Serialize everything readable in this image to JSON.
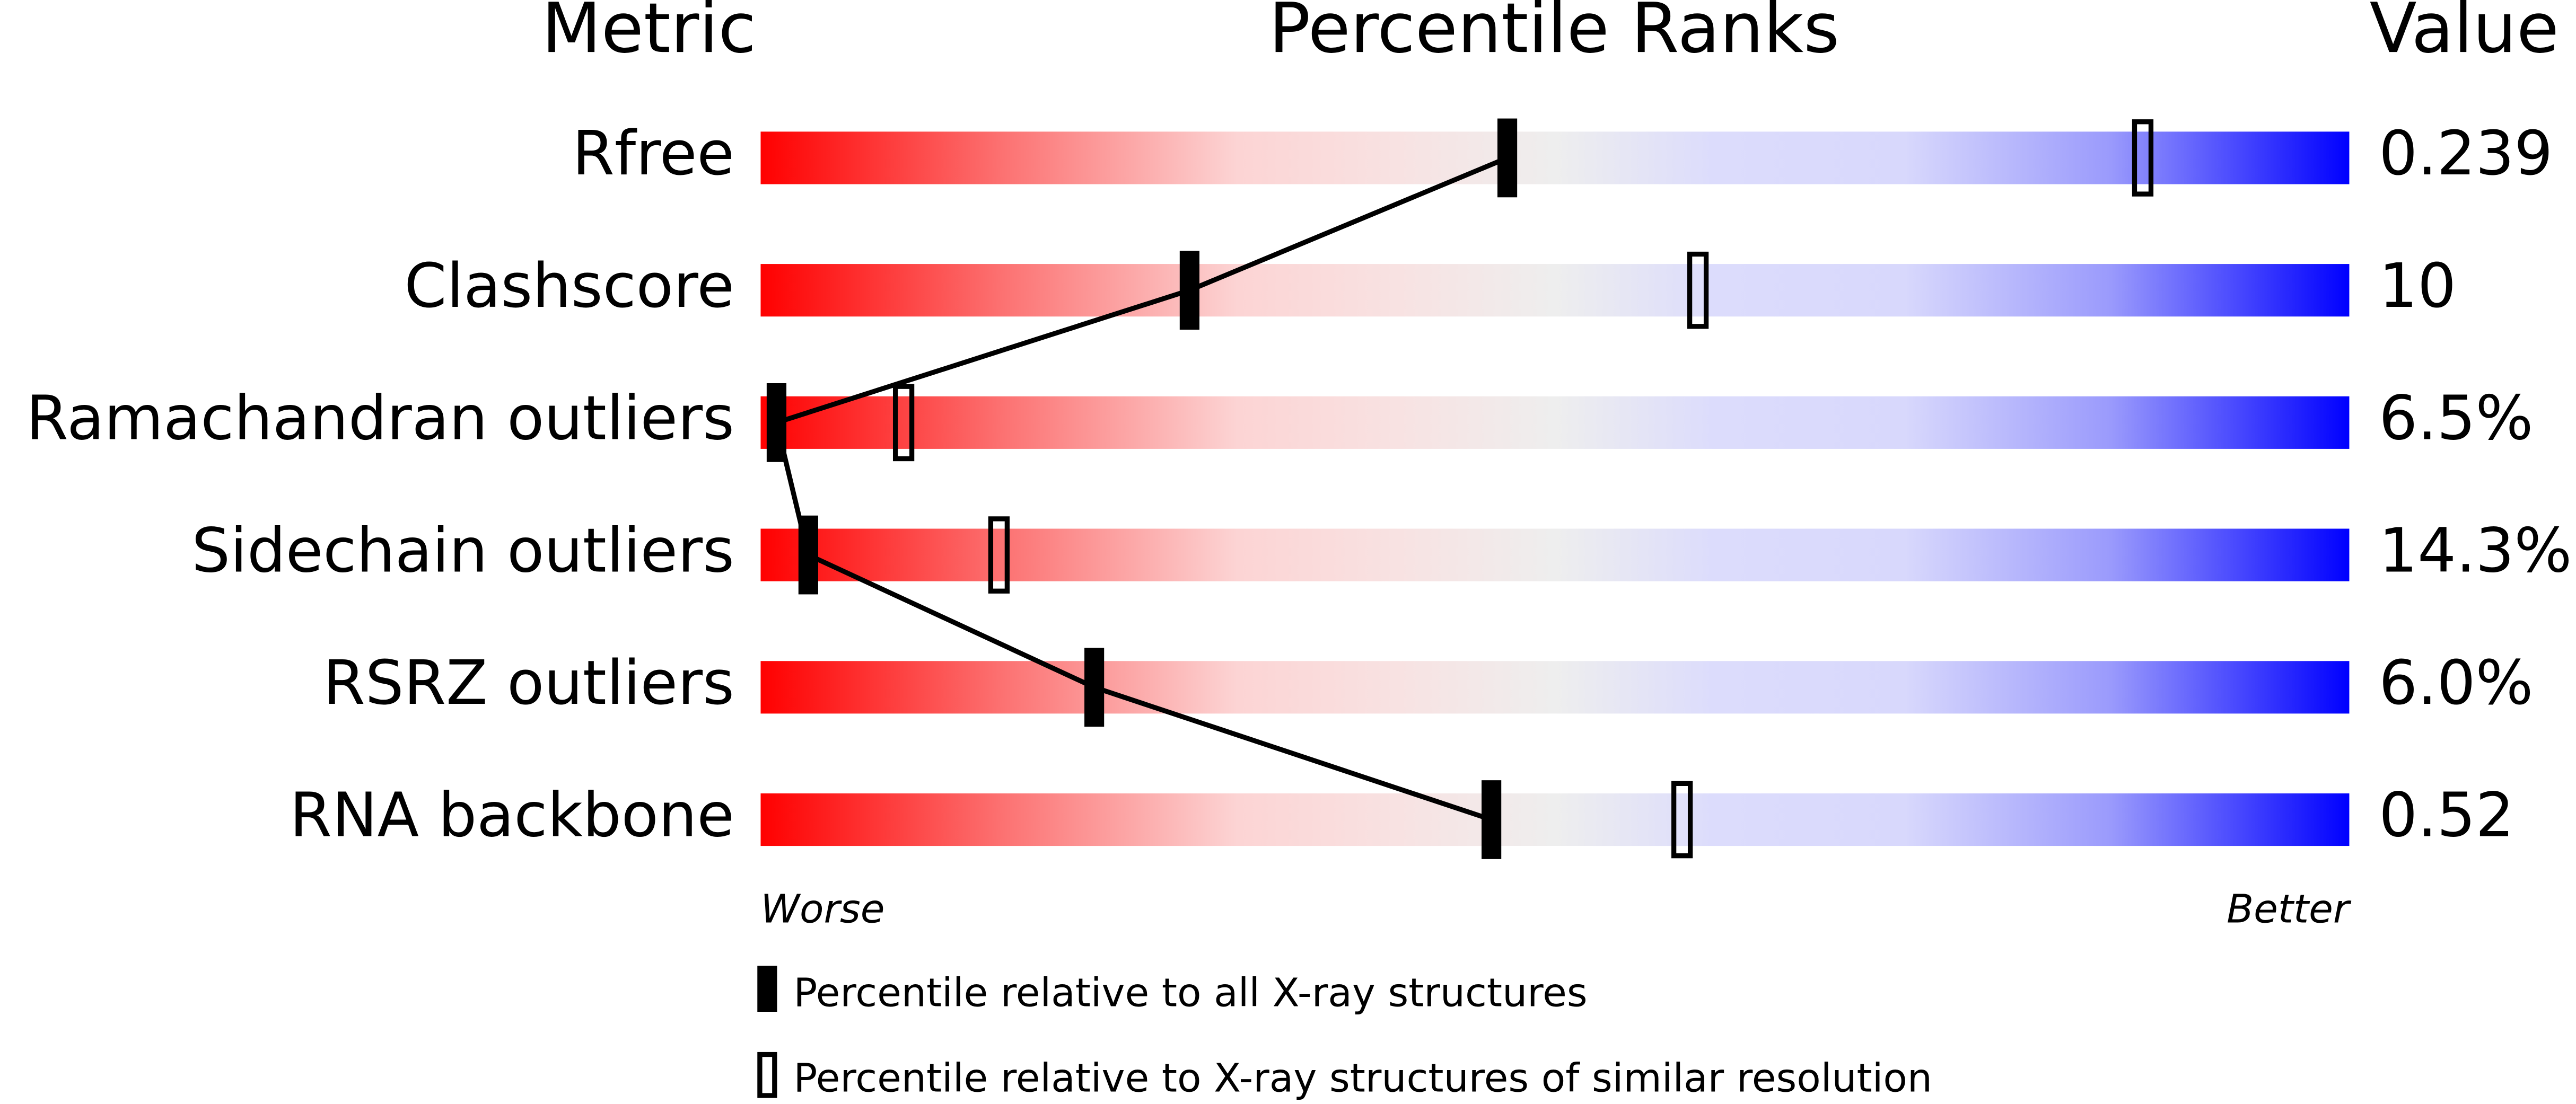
{
  "chart_data": {
    "type": "percentile",
    "headers": [
      "Metric",
      "Percentile Ranks",
      "Value"
    ],
    "categories": [
      "Rfree",
      "Clashscore",
      "Ramachandran outliers",
      "Sidechain outliers",
      "RSRZ outliers",
      "RNA backbone"
    ],
    "metric_values": [
      "0.239",
      "10",
      "6.5%",
      "14.3%",
      "6.0%",
      "0.52"
    ],
    "series": [
      {
        "name": "Percentile relative to all X-ray structures",
        "color": "#000000",
        "values": [
          47,
          27,
          1,
          3,
          21,
          46
        ]
      },
      {
        "name": "Percentile relative to X-ray structures of similar resolution",
        "color": "#000000",
        "values": [
          87,
          59,
          9,
          15,
          null,
          58
        ]
      }
    ],
    "xlim": [
      0,
      100
    ],
    "axis_ends": [
      "Worse",
      "Better"
    ]
  }
}
